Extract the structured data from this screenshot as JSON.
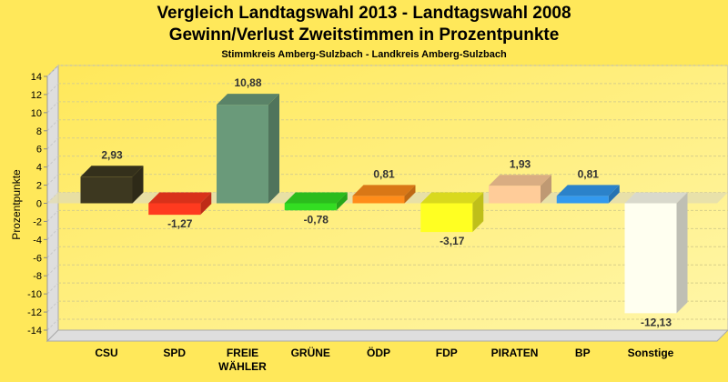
{
  "chart_data": {
    "type": "bar",
    "title": "Vergleich Landtagswahl 2013 - Landtagswahl 2008",
    "subtitle": "Gewinn/Verlust Zweitstimmen in Prozentpunkte",
    "subtitle2": "Stimmkreis Amberg-Sulzbach - Landkreis Amberg-Sulzbach",
    "xlabel": "",
    "ylabel": "Prozentpunkte",
    "ylim": [
      -14,
      14
    ],
    "yticks": [
      14,
      12,
      10,
      8,
      6,
      4,
      2,
      0,
      -2,
      -4,
      -6,
      -8,
      -10,
      -12,
      -14
    ],
    "grid": true,
    "categories": [
      "CSU",
      "SPD",
      "FREIE WÄHLER",
      "GRÜNE",
      "ÖDP",
      "FDP",
      "PIRATEN",
      "BP",
      "Sonstige"
    ],
    "values": [
      2.93,
      -1.27,
      10.88,
      -0.78,
      0.81,
      -3.17,
      1.93,
      0.81,
      -12.13
    ],
    "value_labels": [
      "2,93",
      "-1,27",
      "10,88",
      "-0,78",
      "0,81",
      "-3,17",
      "1,93",
      "0,81",
      "-12,13"
    ],
    "colors": [
      "#3d3820",
      "#ff3a1f",
      "#6a9a7a",
      "#33dd22",
      "#ff8c1a",
      "#ffff22",
      "#ffcc99",
      "#3399ee",
      "#fffff0"
    ]
  }
}
